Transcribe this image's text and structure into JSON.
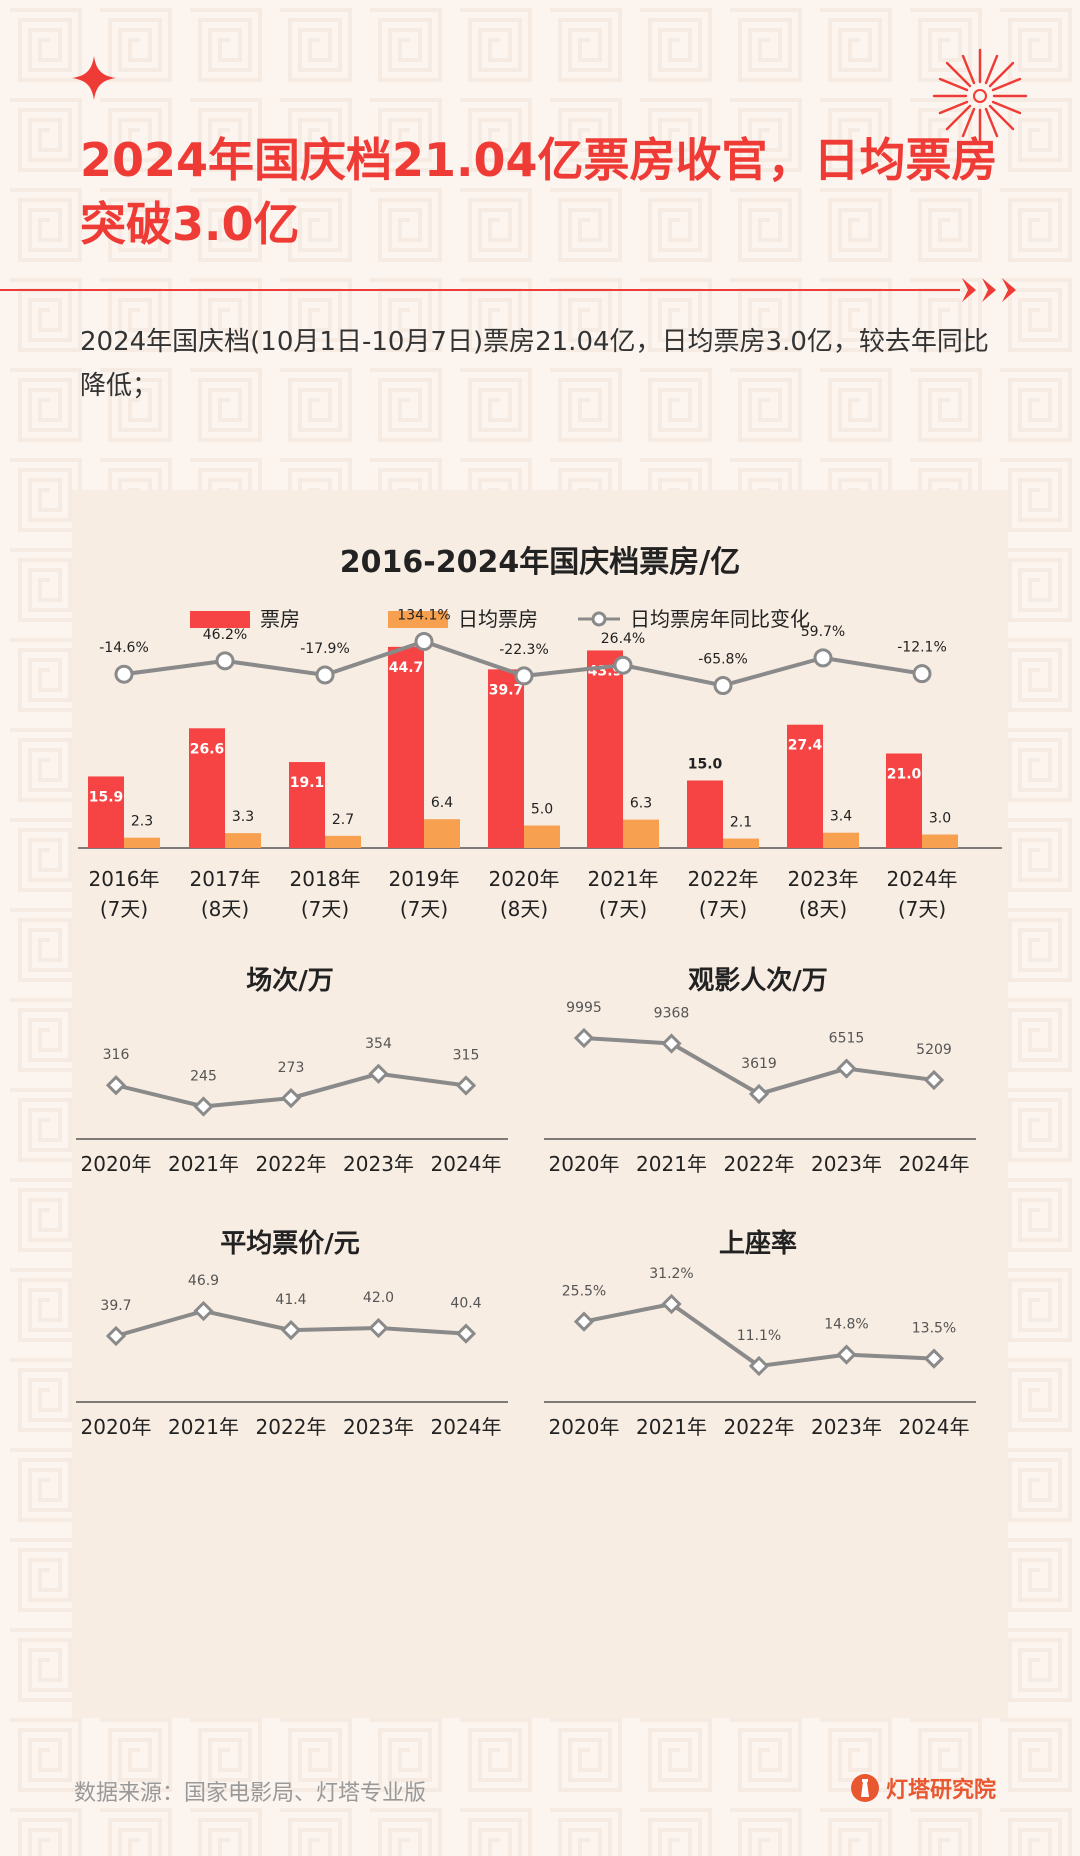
{
  "header": {
    "title": "2024年国庆档21.04亿票房收官，日均票房突破3.0亿",
    "subtitle": "2024年国庆档(10月1日-10月7日)票房21.04亿，日均票房3.0亿，较去年同比降低；"
  },
  "footer": {
    "source": "数据来源：国家电影局、灯塔专业版",
    "brand": "灯塔研究院"
  },
  "colors": {
    "accent": "#ef3b36",
    "bar_primary": "#f64444",
    "bar_secondary": "#f7a050",
    "line": "#8a8a8a",
    "panel": "#f8ede3"
  },
  "chart_data": [
    {
      "type": "bar",
      "title": "2016-2024年国庆档票房/亿",
      "categories": [
        [
          "2016年",
          "(7天)"
        ],
        [
          "2017年",
          "(8天)"
        ],
        [
          "2018年",
          "(7天)"
        ],
        [
          "2019年",
          "(7天)"
        ],
        [
          "2020年",
          "(8天)"
        ],
        [
          "2021年",
          "(7天)"
        ],
        [
          "2022年",
          "(7天)"
        ],
        [
          "2023年",
          "(8天)"
        ],
        [
          "2024年",
          "(7天)"
        ]
      ],
      "series": [
        {
          "name": "票房",
          "values": [
            15.9,
            26.6,
            19.1,
            44.7,
            39.7,
            43.9,
            15.0,
            27.4,
            21.0
          ]
        },
        {
          "name": "日均票房",
          "values": [
            2.3,
            3.3,
            2.7,
            6.4,
            5.0,
            6.3,
            2.1,
            3.4,
            3.0
          ]
        },
        {
          "name": "日均票房年同比变化",
          "type": "line",
          "values": [
            -14.6,
            46.2,
            -17.9,
            134.1,
            -22.3,
            26.4,
            -65.8,
            59.7,
            -12.1
          ],
          "labels": [
            "-14.6%",
            "46.2%",
            "-17.9%",
            "134.1%",
            "-22.3%",
            "26.4%",
            "-65.8%",
            "59.7%",
            "-12.1%"
          ]
        }
      ],
      "legend_position": "top"
    },
    {
      "type": "line",
      "title": "场次/万",
      "categories": [
        "2020年",
        "2021年",
        "2022年",
        "2023年",
        "2024年"
      ],
      "values": [
        316,
        245,
        273,
        354,
        315
      ],
      "labels": [
        "316",
        "245",
        "273",
        "354",
        "315"
      ]
    },
    {
      "type": "line",
      "title": "观影人次/万",
      "categories": [
        "2020年",
        "2021年",
        "2022年",
        "2023年",
        "2024年"
      ],
      "values": [
        9995,
        9368,
        3619,
        6515,
        5209
      ],
      "labels": [
        "9995",
        "9368",
        "3619",
        "6515",
        "5209"
      ]
    },
    {
      "type": "line",
      "title": "平均票价/元",
      "categories": [
        "2020年",
        "2021年",
        "2022年",
        "2023年",
        "2024年"
      ],
      "values": [
        39.7,
        46.9,
        41.4,
        42.0,
        40.4
      ],
      "labels": [
        "39.7",
        "46.9",
        "41.4",
        "42.0",
        "40.4"
      ]
    },
    {
      "type": "line",
      "title": "上座率",
      "categories": [
        "2020年",
        "2021年",
        "2022年",
        "2023年",
        "2024年"
      ],
      "values": [
        25.5,
        31.2,
        11.1,
        14.8,
        13.5
      ],
      "labels": [
        "25.5%",
        "31.2%",
        "11.1%",
        "14.8%",
        "13.5%"
      ]
    }
  ]
}
